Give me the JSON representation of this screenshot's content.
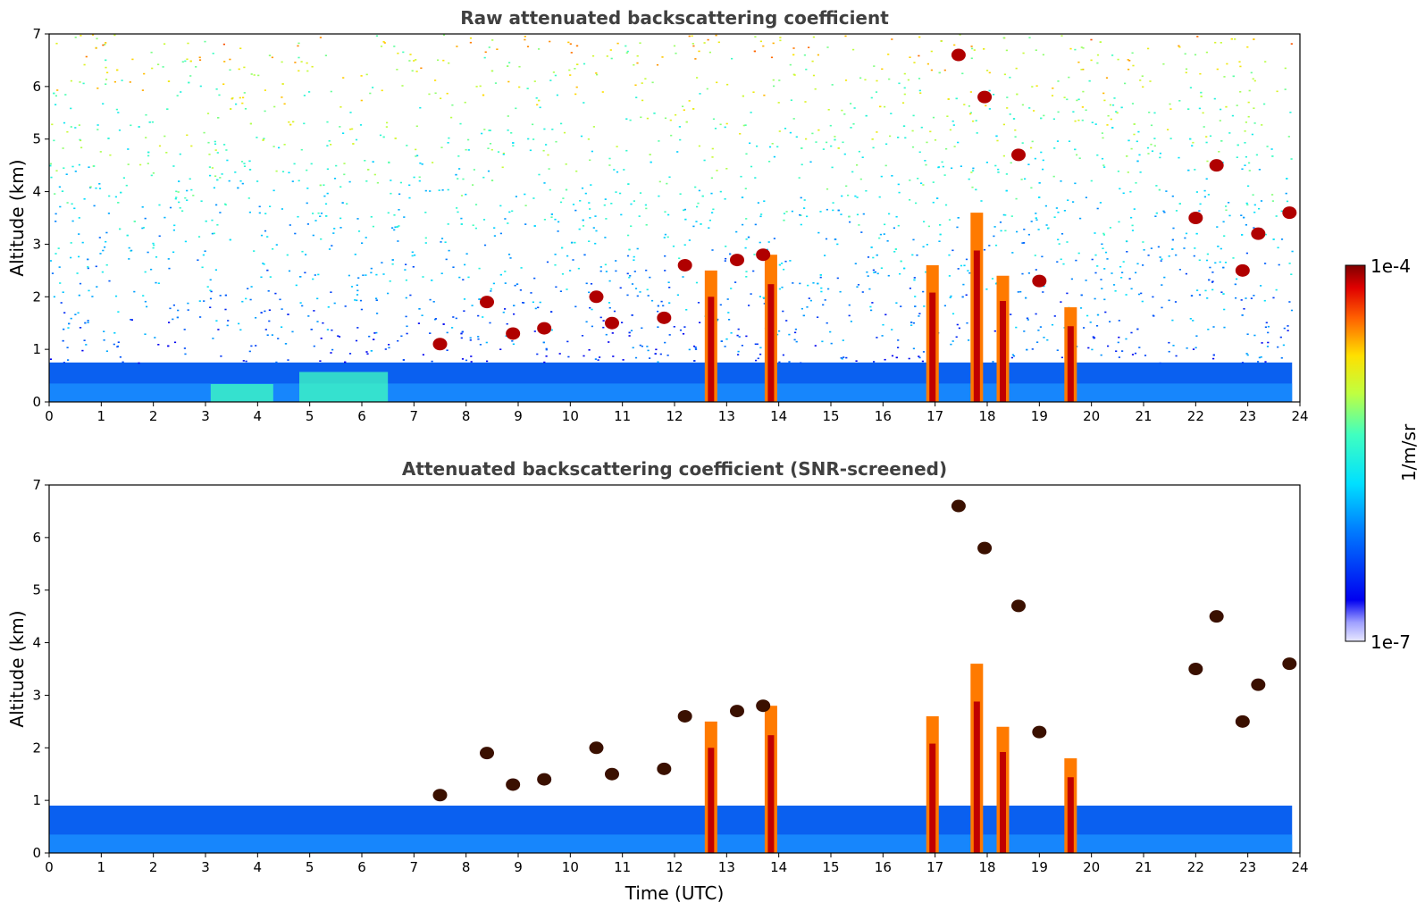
{
  "chart_data": [
    {
      "type": "heatmap",
      "title": "Raw attenuated backscattering coefficient",
      "xlabel": "",
      "ylabel": "Altitude (km)",
      "xlim": [
        0,
        24
      ],
      "ylim": [
        0,
        7
      ],
      "xticks": [
        "0",
        "1",
        "2",
        "3",
        "4",
        "5",
        "6",
        "7",
        "8",
        "9",
        "10",
        "11",
        "12",
        "13",
        "14",
        "15",
        "16",
        "17",
        "18",
        "19",
        "20",
        "21",
        "22",
        "23",
        "24"
      ],
      "yticks": [
        "0",
        "1",
        "2",
        "3",
        "4",
        "5",
        "6",
        "7"
      ],
      "screened": false,
      "features": {
        "boundary_layer_top_km": 0.75,
        "near_surface_aerosol": [
          {
            "t0": 3.1,
            "t1": 4.3,
            "z": 0.22
          },
          {
            "t0": 4.8,
            "t1": 6.5,
            "z": 0.45
          }
        ],
        "precipitation_shafts": [
          {
            "t": 12.7,
            "top_km": 2.5
          },
          {
            "t": 13.85,
            "top_km": 2.8
          },
          {
            "t": 16.95,
            "top_km": 2.6
          },
          {
            "t": 17.8,
            "top_km": 3.6
          },
          {
            "t": 18.3,
            "top_km": 2.4
          },
          {
            "t": 19.6,
            "top_km": 1.8
          }
        ],
        "cloud_patches": [
          {
            "t": 7.5,
            "z": 1.1
          },
          {
            "t": 8.4,
            "z": 1.9
          },
          {
            "t": 8.9,
            "z": 1.3
          },
          {
            "t": 9.5,
            "z": 1.4
          },
          {
            "t": 10.5,
            "z": 2.0
          },
          {
            "t": 10.8,
            "z": 1.5
          },
          {
            "t": 11.8,
            "z": 1.6
          },
          {
            "t": 12.2,
            "z": 2.6
          },
          {
            "t": 13.2,
            "z": 2.7
          },
          {
            "t": 13.7,
            "z": 2.8
          },
          {
            "t": 17.45,
            "z": 6.6
          },
          {
            "t": 17.95,
            "z": 5.8
          },
          {
            "t": 18.6,
            "z": 4.7
          },
          {
            "t": 19.0,
            "z": 2.3
          },
          {
            "t": 22.0,
            "z": 3.5
          },
          {
            "t": 22.4,
            "z": 4.5
          },
          {
            "t": 22.9,
            "z": 2.5
          },
          {
            "t": 23.2,
            "z": 3.2
          },
          {
            "t": 23.8,
            "z": 3.6
          }
        ]
      }
    },
    {
      "type": "heatmap",
      "title": "Attenuated backscattering coefficient (SNR-screened)",
      "xlabel": "Time (UTC)",
      "ylabel": "Altitude (km)",
      "xlim": [
        0,
        24
      ],
      "ylim": [
        0,
        7
      ],
      "xticks": [
        "0",
        "1",
        "2",
        "3",
        "4",
        "5",
        "6",
        "7",
        "8",
        "9",
        "10",
        "11",
        "12",
        "13",
        "14",
        "15",
        "16",
        "17",
        "18",
        "19",
        "20",
        "21",
        "22",
        "23",
        "24"
      ],
      "yticks": [
        "0",
        "1",
        "2",
        "3",
        "4",
        "5",
        "6",
        "7"
      ],
      "screened": true,
      "features": {
        "boundary_layer_top_km": 0.9
      }
    }
  ],
  "colorbar": {
    "label": "1/m/sr",
    "max_label": "1e-4",
    "min_label": "1e-7",
    "colormap": "jet",
    "scale": "log"
  }
}
